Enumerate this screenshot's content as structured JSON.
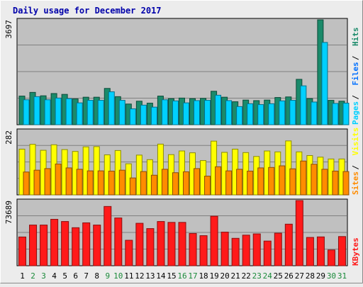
{
  "chart_data": [
    {
      "type": "bar",
      "title": "Daily usage for December 2017",
      "categories": [
        "1",
        "2",
        "3",
        "4",
        "5",
        "6",
        "7",
        "8",
        "9",
        "10",
        "11",
        "12",
        "13",
        "14",
        "15",
        "16",
        "17",
        "18",
        "19",
        "20",
        "21",
        "22",
        "23",
        "24",
        "25",
        "26",
        "27",
        "28",
        "29",
        "30",
        "31"
      ],
      "weekend_days": [
        "2",
        "3",
        "9",
        "10",
        "16",
        "17",
        "23",
        "24",
        "30",
        "31"
      ],
      "max_tick_label": "3697",
      "ylim": [
        0,
        3697
      ],
      "legend": [
        "Pages",
        "Files",
        "Hits"
      ],
      "series": [
        {
          "name": "Hits",
          "color": "#1a8a6a",
          "values": [
            1010,
            1140,
            1020,
            1100,
            1070,
            910,
            970,
            970,
            1280,
            990,
            730,
            830,
            760,
            1010,
            920,
            940,
            920,
            930,
            1180,
            970,
            810,
            870,
            850,
            870,
            960,
            980,
            1600,
            920,
            3697,
            860,
            830
          ]
        },
        {
          "name": "Files",
          "color": "#00d0ff",
          "values": [
            880,
            990,
            880,
            940,
            920,
            770,
            860,
            860,
            1160,
            860,
            560,
            690,
            620,
            880,
            840,
            770,
            850,
            860,
            1040,
            850,
            640,
            740,
            710,
            740,
            840,
            860,
            1370,
            800,
            2900,
            750,
            760
          ]
        }
      ]
    },
    {
      "type": "bar",
      "max_tick_label": "282",
      "ylim": [
        0,
        282
      ],
      "legend": [
        "Sites",
        "Visits"
      ],
      "series": [
        {
          "name": "Visits",
          "color": "#ffff00",
          "values": [
            200,
            221,
            195,
            219,
            198,
            190,
            210,
            211,
            175,
            194,
            136,
            174,
            154,
            222,
            176,
            192,
            184,
            150,
            235,
            186,
            200,
            185,
            168,
            192,
            188,
            236,
            188,
            172,
            165,
            157,
            157
          ]
        },
        {
          "name": "Sites",
          "color": "#ff8c00",
          "values": [
            100,
            108,
            115,
            135,
            118,
            112,
            105,
            105,
            104,
            108,
            74,
            102,
            86,
            112,
            97,
            101,
            115,
            82,
            123,
            105,
            112,
            104,
            118,
            120,
            127,
            114,
            148,
            134,
            112,
            104,
            102
          ]
        }
      ]
    },
    {
      "type": "bar",
      "max_tick_label": "73689",
      "ylim": [
        0,
        73689
      ],
      "legend": [
        "KBytes"
      ],
      "series": [
        {
          "name": "KBytes",
          "color": "#ff1a1a",
          "values": [
            32500,
            46000,
            46000,
            52500,
            50000,
            43000,
            48500,
            46000,
            67000,
            54000,
            28800,
            48000,
            42000,
            50000,
            49000,
            49000,
            36500,
            34000,
            56000,
            38000,
            31000,
            34600,
            36000,
            27900,
            36800,
            47000,
            73689,
            32000,
            32600,
            17800,
            33000
          ]
        }
      ]
    }
  ]
}
